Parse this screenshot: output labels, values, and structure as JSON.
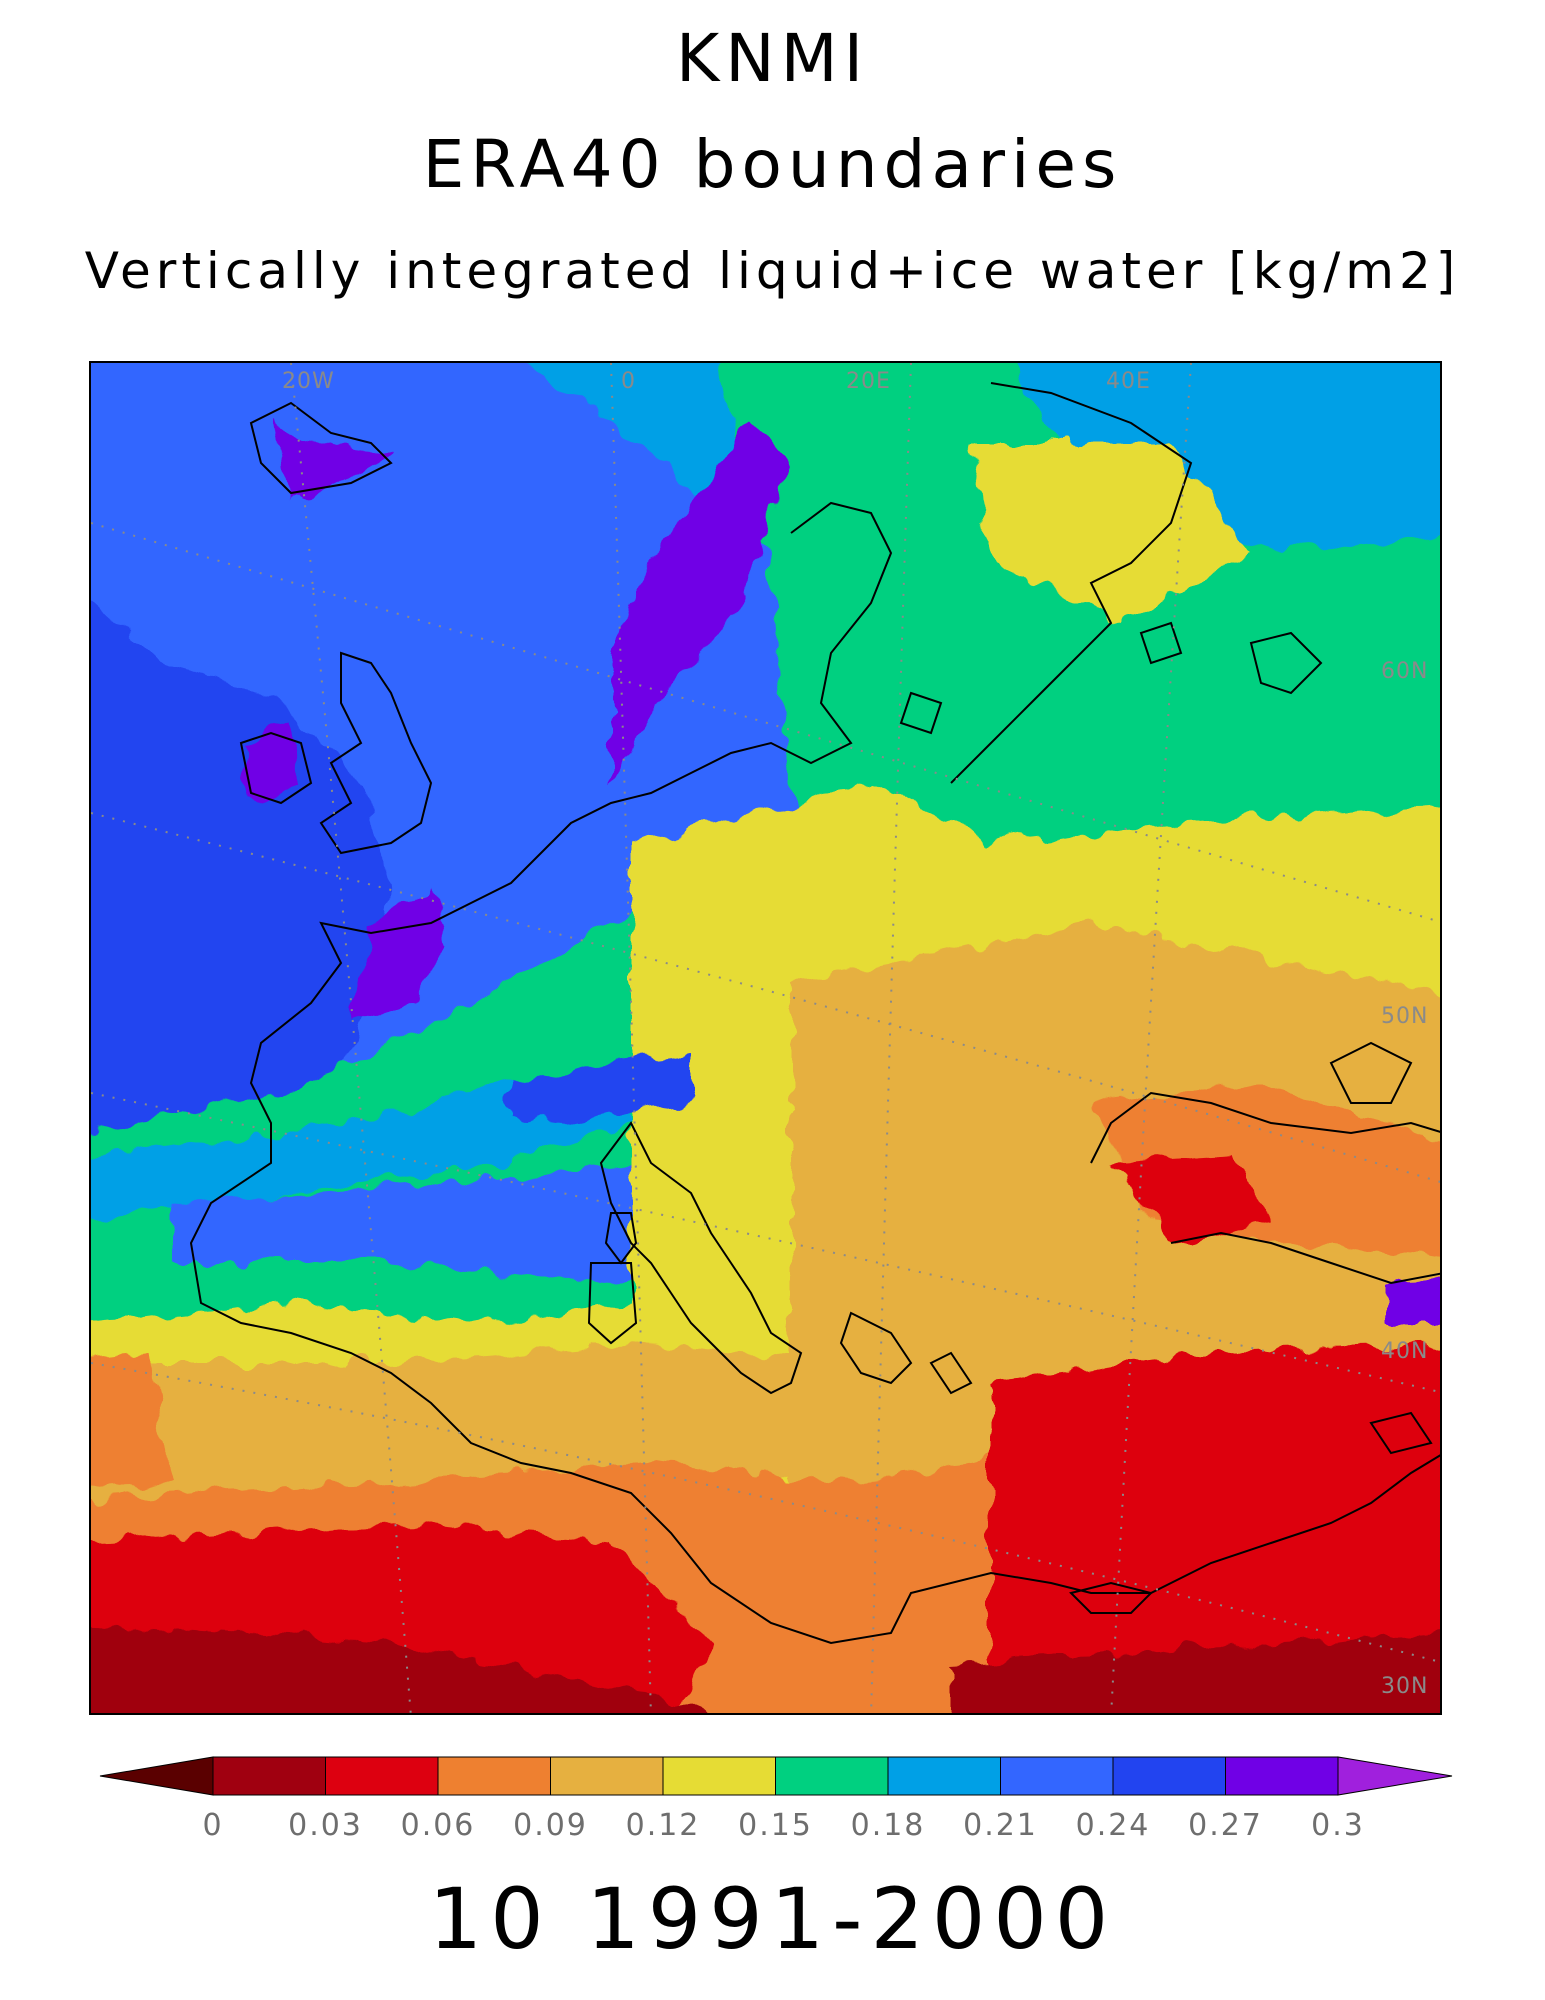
{
  "titles": {
    "line1": "KNMI",
    "line2": "ERA40 boundaries",
    "line3": "Vertically integrated liquid+ice water [kg/m2]"
  },
  "map": {
    "variable": "Vertically integrated liquid+ice water",
    "unit": "kg/m2",
    "longitude_labels": [
      "20W",
      "0",
      "20E",
      "40E"
    ],
    "latitude_labels": [
      "60N",
      "50N",
      "40N",
      "30N"
    ],
    "region": "Europe",
    "graticule": "dotted",
    "coastlines": true
  },
  "legend": {
    "ticks": [
      "0",
      "0.03",
      "0.06",
      "0.09",
      "0.12",
      "0.15",
      "0.18",
      "0.21",
      "0.24",
      "0.27",
      "0.3"
    ],
    "colors": [
      "#5a0000",
      "#a00010",
      "#dd0010",
      "#ee8030",
      "#e6b040",
      "#e6dc34",
      "#00d080",
      "#00a0e6",
      "#3366ff",
      "#2244f0",
      "#7000e6",
      "#a020dd"
    ],
    "extend": "both"
  },
  "period": "10 1991-2000"
}
